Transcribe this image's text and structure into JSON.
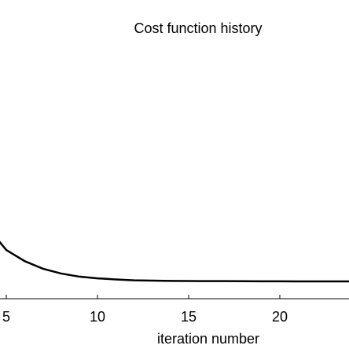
{
  "chart_data": {
    "type": "line",
    "title": "Cost function history",
    "xlabel": "iteration number",
    "x": [
      4,
      5,
      6,
      7,
      8,
      9,
      10,
      11,
      12,
      13,
      14,
      15,
      16,
      17,
      18,
      19,
      20,
      21,
      22,
      23,
      24
    ],
    "series": [
      {
        "color": "#000000",
        "values": [
          0.25,
          0.172,
          0.133,
          0.106,
          0.089,
          0.078,
          0.072,
          0.068,
          0.065,
          0.064,
          0.063,
          0.0625,
          0.0622,
          0.062,
          0.0618,
          0.0616,
          0.0614,
          0.0612,
          0.061,
          0.061,
          0.061
        ]
      }
    ],
    "xlim": [
      4.655,
      23.793
    ],
    "xticks": [
      5,
      10,
      15,
      20
    ],
    "ylim": [
      0,
      1
    ]
  }
}
